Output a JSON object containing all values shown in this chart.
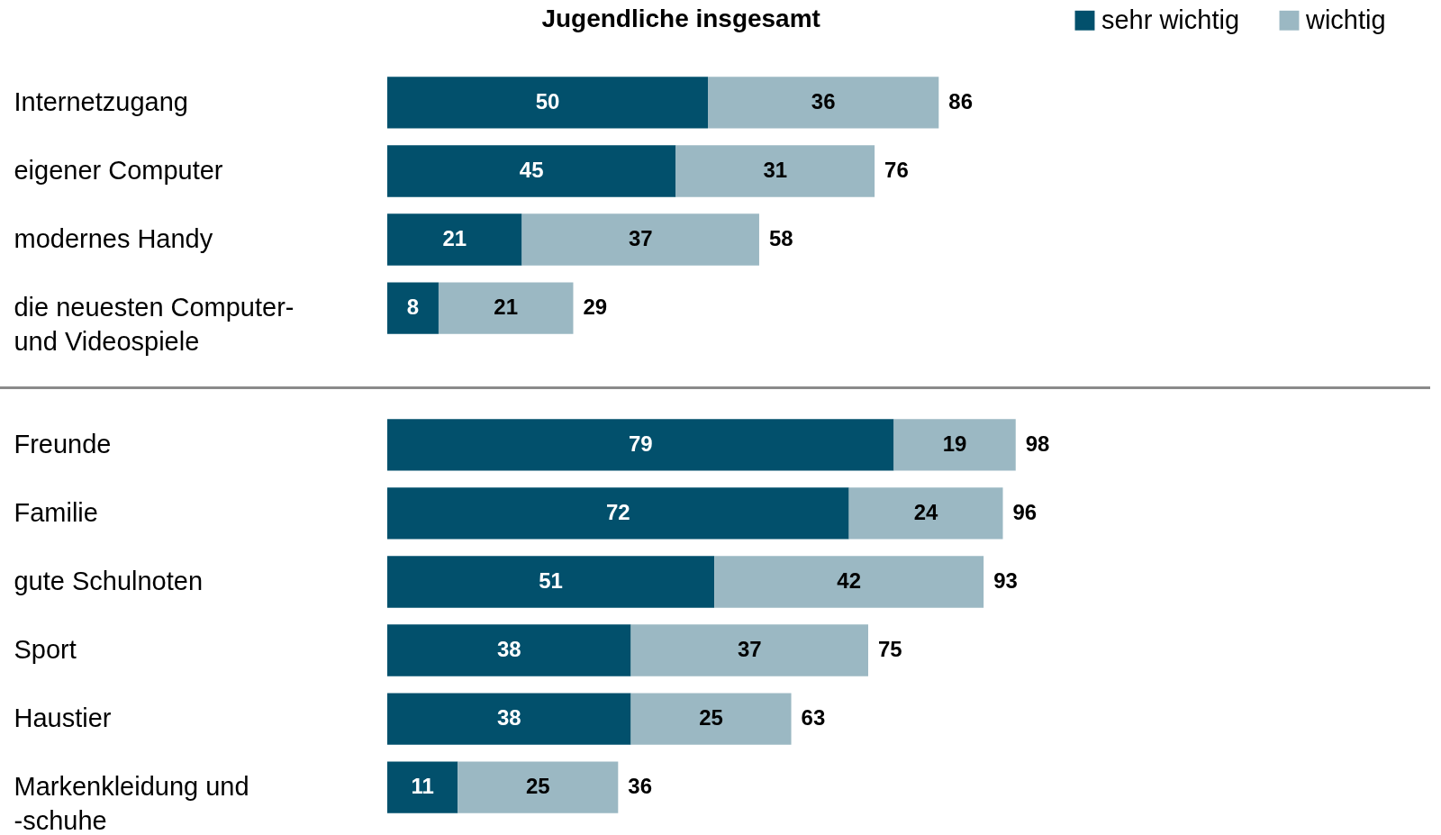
{
  "chart_data": [
    {
      "type": "bar",
      "orientation": "horizontal",
      "stacked": true,
      "title": "Jugendliche insgesamt",
      "legend": "top right",
      "data_labels": true,
      "categories": [
        "Internetzugang",
        "eigener Computer",
        "modernes Handy",
        "die neuesten Computer- und Videospiele"
      ],
      "series": [
        {
          "name": "sehr wichtig",
          "color": "#02506c",
          "values": [
            50,
            45,
            21,
            8
          ]
        },
        {
          "name": "wichtig",
          "color": "#9bb8c3",
          "values": [
            36,
            31,
            37,
            21
          ]
        }
      ],
      "totals": [
        "86",
        "76",
        "58",
        "29"
      ]
    },
    {
      "type": "bar",
      "orientation": "horizontal",
      "stacked": true,
      "data_labels": true,
      "categories": [
        "Freunde",
        "Familie",
        "gute Schulnoten",
        "Sport",
        "Haustier",
        "Markenkleidung und -schuhe"
      ],
      "series": [
        {
          "color": "#02506c",
          "values": [
            79,
            72,
            51,
            38,
            38,
            11
          ]
        },
        {
          "color": "#9bb8c3",
          "values": [
            19,
            24,
            42,
            37,
            25,
            25
          ]
        }
      ],
      "legend": false,
      "totals": [
        "98",
        "96",
        "93",
        "75",
        "63",
        "36"
      ]
    }
  ]
}
